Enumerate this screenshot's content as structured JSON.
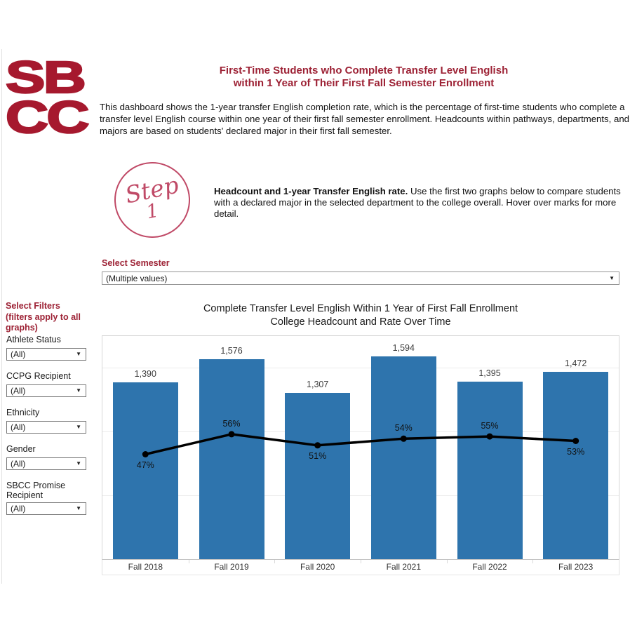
{
  "logo": {
    "line1": "SB",
    "line2": "CC"
  },
  "icons": {
    "dropdown_arrow": "▼"
  },
  "colors": {
    "brand_red": "#a6192e",
    "heading_maroon": "#9d2235",
    "step_pink": "#c04a67",
    "bar_blue": "#2e74ad",
    "line_black": "#000000",
    "grid_gray": "#ececec",
    "border_gray": "#d6d6d6"
  },
  "header": {
    "title_line1": "First-Time Students who Complete Transfer Level English",
    "title_line2": "within 1 Year of Their First Fall Semester Enrollment",
    "description": "This dashboard shows the 1-year transfer English completion rate, which is the percentage of first-time students who complete a transfer level English course within one year of their first fall semester enrollment. Headcounts within pathways, departments, and majors are based on students' declared major in their first fall semester."
  },
  "step": {
    "badge_line1": "Step",
    "badge_line2": "1",
    "lead": "Headcount and 1-year Transfer English rate.",
    "text": " Use the first two graphs below to compare students with a declared major in the selected department to the college overall. Hover over marks for more detail."
  },
  "semester_filter": {
    "label": "Select Semester",
    "value": "(Multiple values)"
  },
  "sidebar": {
    "title_line1": "Select Filters",
    "title_line2": "(filters apply to all",
    "title_line3": "graphs)",
    "filters": [
      {
        "label": "Athlete Status",
        "value": "(All)"
      },
      {
        "label": "CCPG Recipient",
        "value": "(All)"
      },
      {
        "label": "Ethnicity",
        "value": "(All)"
      },
      {
        "label": "Gender",
        "value": "(All)"
      },
      {
        "label": "SBCC Promise Recipient",
        "value": "(All)"
      }
    ]
  },
  "chart_data": {
    "type": "bar",
    "title": "Complete Transfer Level English Within 1 Year of First Fall Enrollment",
    "subtitle": "College Headcount and Rate Over Time",
    "categories": [
      "Fall 2018",
      "Fall 2019",
      "Fall 2020",
      "Fall 2021",
      "Fall 2022",
      "Fall 2023"
    ],
    "series": [
      {
        "name": "College Headcount",
        "type": "bar",
        "values": [
          1390,
          1576,
          1307,
          1594,
          1395,
          1472
        ],
        "labels": [
          "1,390",
          "1,576",
          "1,307",
          "1,594",
          "1,395",
          "1,472"
        ],
        "color": "#2e74ad"
      },
      {
        "name": "1-year Transfer English completion rate",
        "type": "line",
        "values": [
          47,
          56,
          51,
          54,
          55,
          53
        ],
        "labels": [
          "47%",
          "56%",
          "51%",
          "54%",
          "55%",
          "53%"
        ],
        "label_positions": [
          "below",
          "above",
          "below",
          "above",
          "above",
          "below"
        ],
        "color": "#000000"
      }
    ],
    "bar_axis_max": 1756,
    "pct_axis_max": 100,
    "gridlines_at": [
      500,
      1000,
      1500
    ],
    "grid": true,
    "legend_position": "none",
    "xlabel": "",
    "ylabel": ""
  }
}
